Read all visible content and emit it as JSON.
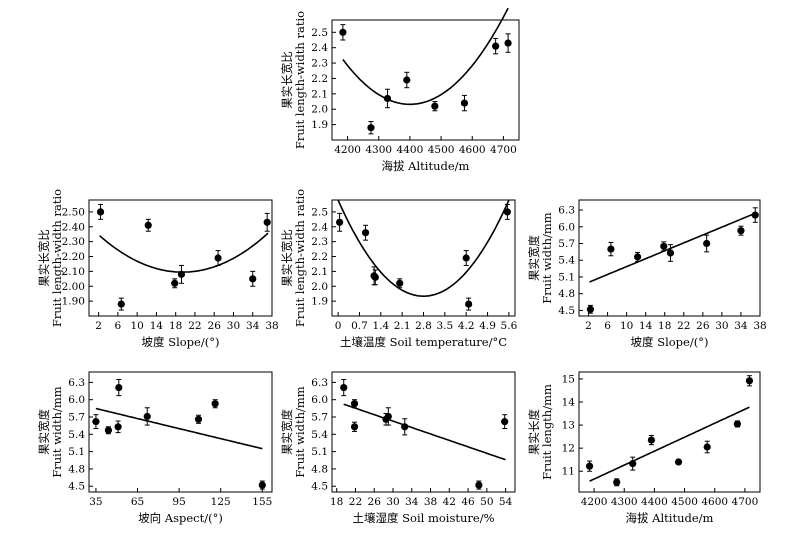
{
  "chart_data": [
    {
      "type": "scatter",
      "ylabel_cn": "果实长宽比",
      "ylabel_en": "Fruit length-width ratio",
      "xlabel": "海拔 Altitude/m",
      "xlim": [
        4150,
        4750
      ],
      "ylim": [
        1.8,
        2.58
      ],
      "xticks": [
        4200,
        4300,
        4400,
        4500,
        4600,
        4700
      ],
      "yticks": [
        1.9,
        2.0,
        2.1,
        2.2,
        2.3,
        2.4,
        2.5
      ],
      "ytick_format": 1,
      "points": [
        [
          4185,
          2.5,
          0.05
        ],
        [
          4275,
          1.88,
          0.04
        ],
        [
          4328,
          2.07,
          0.06
        ],
        [
          4390,
          2.19,
          0.05
        ],
        [
          4480,
          2.02,
          0.03
        ],
        [
          4575,
          2.04,
          0.05
        ],
        [
          4675,
          2.41,
          0.05
        ],
        [
          4715,
          2.43,
          0.06
        ]
      ],
      "trend": {
        "kind": "quadratic",
        "coef": [
          6.3e-06,
          -0.05544,
          124.0
        ],
        "x_range": [
          4185,
          4715
        ]
      }
    },
    {
      "type": "scatter",
      "ylabel_cn": "果实长宽比",
      "ylabel_en": "Fruit length-width ratio",
      "xlabel": "坡度 Slope/(°)",
      "xlim": [
        0,
        38
      ],
      "ylim": [
        1.8,
        2.58
      ],
      "xticks": [
        2,
        6,
        10,
        14,
        18,
        22,
        26,
        30,
        34,
        38
      ],
      "yticks": [
        1.9,
        2.0,
        2.1,
        2.2,
        2.3,
        2.4,
        2.5
      ],
      "ytick_format": 2,
      "points": [
        [
          2.4,
          2.5,
          0.05
        ],
        [
          6.7,
          1.88,
          0.04
        ],
        [
          12.3,
          2.41,
          0.04
        ],
        [
          17.8,
          2.02,
          0.03
        ],
        [
          19.2,
          2.08,
          0.06
        ],
        [
          26.8,
          2.19,
          0.05
        ],
        [
          34.0,
          2.05,
          0.05
        ],
        [
          37.0,
          2.43,
          0.06
        ]
      ],
      "trend": {
        "kind": "quadratic",
        "coef": [
          0.000829,
          -0.03217,
          2.407
        ],
        "x_range": [
          2.2,
          37.2
        ]
      }
    },
    {
      "type": "scatter",
      "ylabel_cn": "果实长宽比",
      "ylabel_en": "Fruit length-width ratio",
      "xlabel": "土壤温度 Soil temperature/°C",
      "xlim": [
        -0.2,
        5.8
      ],
      "ylim": [
        1.8,
        2.58
      ],
      "xticks": [
        0,
        0.7,
        1.4,
        2.1,
        2.8,
        3.5,
        4.2,
        4.9,
        5.6
      ],
      "yticks": [
        1.9,
        2.0,
        2.1,
        2.2,
        2.3,
        2.4,
        2.5
      ],
      "ytick_format": 1,
      "points": [
        [
          0.05,
          2.43,
          0.06
        ],
        [
          0.9,
          2.36,
          0.05
        ],
        [
          1.18,
          2.07,
          0.06
        ],
        [
          1.22,
          2.06,
          0.05
        ],
        [
          2.02,
          2.02,
          0.03
        ],
        [
          4.2,
          2.19,
          0.05
        ],
        [
          4.28,
          1.88,
          0.04
        ],
        [
          5.55,
          2.5,
          0.05
        ]
      ],
      "trend": {
        "kind": "quadratic",
        "coef": [
          0.0824,
          -0.4614,
          2.579
        ],
        "x_range": [
          0,
          5.6
        ]
      }
    },
    {
      "type": "scatter",
      "ylabel_cn": "果实宽度",
      "ylabel_en": "Fruit width/mm",
      "xlabel": "坡度 Slope/(°)",
      "xlim": [
        0,
        38
      ],
      "ylim": [
        4.4,
        6.48
      ],
      "xticks": [
        2,
        6,
        10,
        14,
        18,
        22,
        26,
        30,
        34,
        38
      ],
      "yticks": [
        4.5,
        4.8,
        5.1,
        5.4,
        5.7,
        6.0,
        6.3
      ],
      "ytick_format": 1,
      "points": [
        [
          2.4,
          4.52,
          0.07
        ],
        [
          6.7,
          5.6,
          0.12
        ],
        [
          12.3,
          5.46,
          0.08
        ],
        [
          17.8,
          5.65,
          0.08
        ],
        [
          19.2,
          5.53,
          0.15
        ],
        [
          26.8,
          5.7,
          0.15
        ],
        [
          34.0,
          5.93,
          0.08
        ],
        [
          37.0,
          6.21,
          0.13
        ]
      ],
      "trend": {
        "kind": "linear",
        "coef": [
          0.0354,
          4.932
        ],
        "x_range": [
          2.2,
          37.2
        ]
      }
    },
    {
      "type": "scatter",
      "ylabel_cn": "果实宽度",
      "ylabel_en": "Fruit width/mm",
      "xlabel": "坡向 Aspect/(°)",
      "xlim": [
        30,
        162
      ],
      "ylim": [
        4.4,
        6.48
      ],
      "xticks": [
        35,
        65,
        95,
        125,
        155
      ],
      "yticks": [
        4.5,
        4.8,
        5.1,
        5.4,
        5.7,
        6.0,
        6.3
      ],
      "ytick_format": 1,
      "points": [
        [
          35,
          5.62,
          0.12
        ],
        [
          44,
          5.47,
          0.06
        ],
        [
          51,
          5.53,
          0.1
        ],
        [
          51.5,
          6.21,
          0.14
        ],
        [
          72,
          5.71,
          0.15
        ],
        [
          109,
          5.66,
          0.07
        ],
        [
          121,
          5.93,
          0.07
        ],
        [
          155,
          4.52,
          0.07
        ]
      ],
      "trend": {
        "kind": "linear",
        "coef": [
          -0.0058,
          6.05
        ],
        "x_range": [
          35,
          155
        ]
      }
    },
    {
      "type": "scatter",
      "ylabel_cn": "果实宽度",
      "ylabel_en": "Fruit width/mm",
      "xlabel": "土壤湿度 Soil moisture/%",
      "xlim": [
        17,
        56
      ],
      "ylim": [
        4.4,
        6.48
      ],
      "xticks": [
        18,
        22,
        26,
        30,
        34,
        38,
        42,
        46,
        50,
        54
      ],
      "yticks": [
        4.5,
        4.8,
        5.1,
        5.4,
        5.7,
        6.0,
        6.3
      ],
      "ytick_format": 1,
      "points": [
        [
          19.5,
          6.21,
          0.14
        ],
        [
          21.8,
          5.93,
          0.07
        ],
        [
          21.8,
          5.53,
          0.08
        ],
        [
          28.5,
          5.66,
          0.1
        ],
        [
          29.0,
          5.71,
          0.15
        ],
        [
          32.5,
          5.53,
          0.14
        ],
        [
          48.3,
          4.52,
          0.07
        ],
        [
          53.8,
          5.62,
          0.12
        ]
      ],
      "trend": {
        "kind": "linear",
        "coef": [
          -0.0279,
          6.466
        ],
        "x_range": [
          19.5,
          54
        ]
      }
    },
    {
      "type": "scatter",
      "ylabel_cn": "果实长度",
      "ylabel_en": "Fruit length/mm",
      "xlabel": "海拔 Altitude/m",
      "xlim": [
        4150,
        4750
      ],
      "ylim": [
        10.1,
        15.3
      ],
      "xticks": [
        4200,
        4300,
        4400,
        4500,
        4600,
        4700
      ],
      "yticks": [
        11,
        12,
        13,
        14,
        15
      ],
      "ytick_format": 0,
      "points": [
        [
          4185,
          11.22,
          0.22
        ],
        [
          4275,
          10.52,
          0.15
        ],
        [
          4328,
          11.33,
          0.28
        ],
        [
          4390,
          12.35,
          0.2
        ],
        [
          4480,
          11.4,
          0.1
        ],
        [
          4575,
          12.05,
          0.25
        ],
        [
          4675,
          13.05,
          0.13
        ],
        [
          4715,
          14.92,
          0.22
        ]
      ],
      "trend": {
        "kind": "linear",
        "coef": [
          0.00605,
          -14.75
        ],
        "x_range": [
          4185,
          4715
        ]
      }
    }
  ]
}
